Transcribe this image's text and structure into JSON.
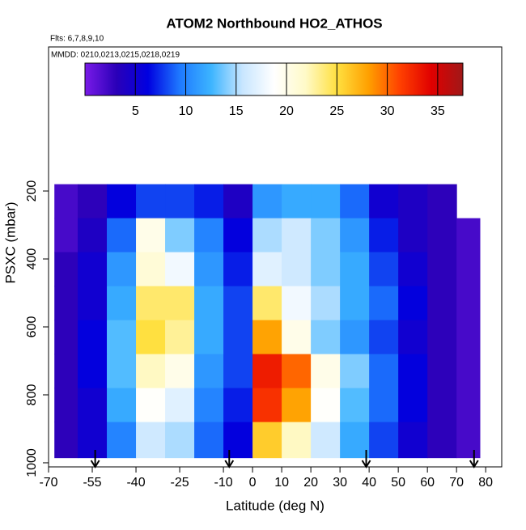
{
  "chart_data": {
    "type": "heatmap",
    "title": "ATOM2 Northbound HO2_ATHOS",
    "subtitle": "Flts: 6,7,8,9,10",
    "annotation": "MMDD: 0210,0213,0215,0218,0219",
    "x_label": "Latitude (deg N)",
    "y_label": "PSXC (mbar)",
    "xlim": [
      -70,
      85.5
    ],
    "xticks": [
      -70,
      -55,
      -40,
      -25,
      -10,
      0,
      10,
      20,
      30,
      40,
      50,
      60,
      70,
      80
    ],
    "ylim": [
      1012,
      -224
    ],
    "yticks": [
      200,
      400,
      600,
      800,
      1000
    ],
    "lat_edges": [
      -68,
      -60,
      -50,
      -40,
      -30,
      -20,
      -10,
      0,
      10,
      20,
      30,
      40,
      50,
      60,
      70,
      78
    ],
    "pressure_edges": [
      180,
      280,
      380,
      480,
      580,
      680,
      780,
      880,
      985
    ],
    "z": [
      [
        2,
        3,
        6,
        8,
        8,
        7,
        4,
        11,
        12,
        12,
        9,
        5,
        4,
        3,
        null
      ],
      [
        2,
        4,
        9,
        20,
        14,
        10,
        6,
        15,
        16,
        14,
        11,
        7,
        4,
        3,
        2
      ],
      [
        3,
        5,
        11,
        21,
        18,
        11,
        7,
        17,
        16,
        14,
        12,
        8,
        5,
        3,
        2
      ],
      [
        3,
        5,
        12,
        24,
        24,
        12,
        8,
        24,
        18,
        15,
        12,
        9,
        6,
        3,
        2
      ],
      [
        3,
        6,
        13,
        25,
        23,
        12,
        8,
        28,
        20,
        14,
        11,
        8,
        5,
        3,
        2
      ],
      [
        3,
        6,
        13,
        22,
        20,
        11,
        8,
        33,
        30,
        20,
        14,
        9,
        6,
        3,
        2
      ],
      [
        3,
        5,
        12,
        19,
        17,
        10,
        7,
        32,
        28,
        19,
        13,
        9,
        6,
        3,
        2
      ],
      [
        3,
        5,
        10,
        16,
        15,
        9,
        6,
        26,
        22,
        16,
        12,
        8,
        5,
        3,
        2
      ]
    ],
    "zlim": [
      0,
      37.5
    ],
    "zticks": [
      5,
      10,
      15,
      20,
      25,
      30,
      35
    ],
    "colors": [
      "#7a1be8",
      "#2a00b8",
      "#0000e0",
      "#1e78ff",
      "#3cb4ff",
      "#c8e6ff",
      "#ffffff",
      "#fffac8",
      "#ffe040",
      "#ffa000",
      "#ff4000",
      "#e00000",
      "#a01818"
    ],
    "markers": [
      -54,
      -8,
      39,
      76
    ]
  }
}
